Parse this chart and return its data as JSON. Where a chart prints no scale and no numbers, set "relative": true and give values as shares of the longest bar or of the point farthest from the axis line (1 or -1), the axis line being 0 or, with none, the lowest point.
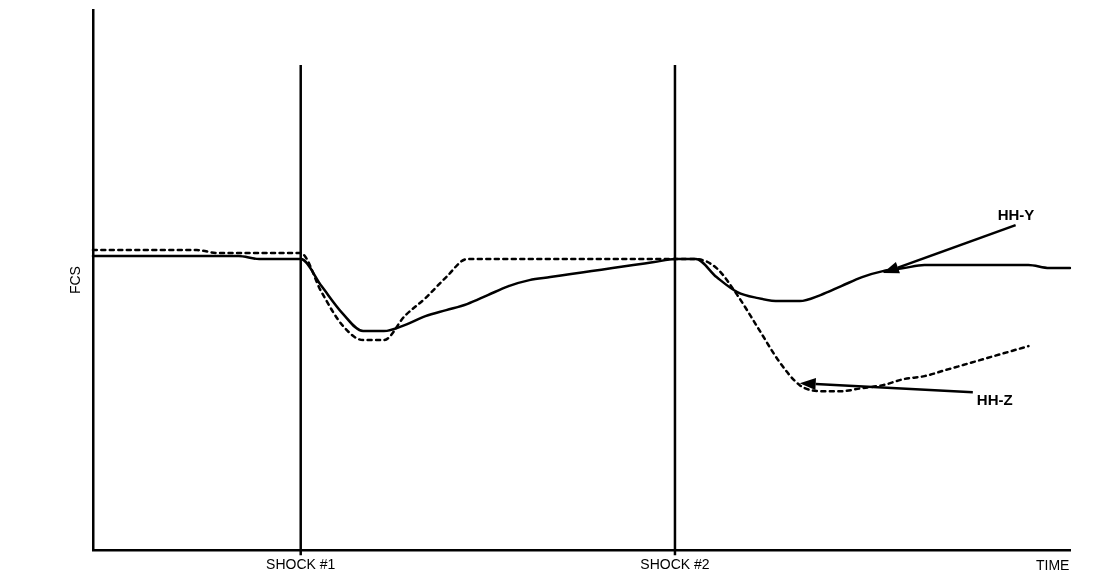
{
  "chart_data": {
    "type": "line",
    "relative": true,
    "xlabel": "TIME",
    "ylabel": "FCS",
    "categories": [
      null,
      null,
      null,
      null,
      null,
      null,
      null,
      null,
      null,
      null,
      "SHOCK #1",
      null,
      null,
      null,
      null,
      null,
      null,
      null,
      null,
      null,
      null,
      null,
      null,
      null,
      null,
      null,
      null,
      null,
      "SHOCK #2",
      null,
      null,
      null,
      null,
      null,
      null,
      null,
      null,
      null,
      null,
      null,
      null,
      null,
      null,
      null,
      null,
      null,
      null,
      null
    ],
    "series": [
      {
        "name": "HH-Y",
        "color": "#000000",
        "line_style": "solid",
        "values": [
          0.98,
          0.98,
          0.98,
          0.98,
          0.98,
          0.98,
          0.98,
          0.98,
          0.97,
          0.97,
          0.97,
          0.88,
          0.79,
          0.73,
          0.73,
          0.75,
          0.78,
          0.8,
          0.82,
          0.85,
          0.88,
          0.9,
          0.91,
          0.92,
          0.93,
          0.94,
          0.95,
          0.96,
          0.97,
          0.97,
          0.91,
          0.86,
          0.84,
          0.83,
          0.83,
          0.85,
          0.88,
          0.91,
          0.93,
          0.94,
          0.95,
          0.95,
          0.95,
          0.95,
          0.95,
          0.95,
          0.94,
          0.94
        ]
      },
      {
        "name": "HH-Z",
        "color": "#000000",
        "line_style": "dashed",
        "values": [
          1,
          1,
          1,
          1,
          1,
          1,
          0.99,
          0.99,
          0.99,
          0.99,
          0.99,
          0.86,
          0.75,
          0.7,
          0.7,
          0.78,
          0.84,
          0.91,
          0.97,
          0.97,
          0.97,
          0.97,
          0.97,
          0.97,
          0.97,
          0.97,
          0.97,
          0.97,
          0.97,
          0.97,
          0.94,
          0.85,
          0.74,
          0.63,
          0.55,
          0.53,
          0.53,
          0.54,
          0.55,
          0.57,
          0.58,
          0.6,
          0.62,
          0.64,
          0.66,
          0.68,
          null,
          null
        ]
      }
    ],
    "ref_lines": [
      {
        "axis": "x",
        "value": "SHOCK #1",
        "color": "#000000"
      },
      {
        "axis": "x",
        "value": "SHOCK #2",
        "color": "#000000"
      }
    ],
    "marker": "none",
    "grid": false,
    "legend": false
  }
}
